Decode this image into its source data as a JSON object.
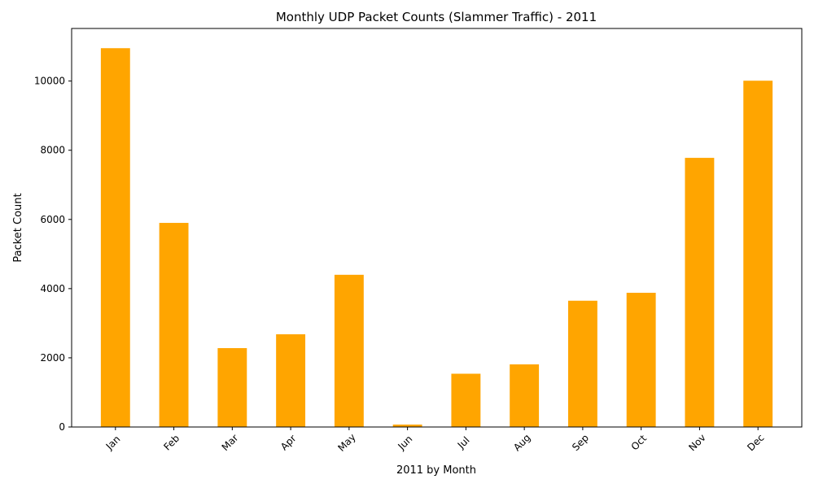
{
  "chart_data": {
    "type": "bar",
    "title": "Monthly UDP Packet Counts (Slammer Traffic) - 2011",
    "xlabel": "2011 by Month",
    "ylabel": "Packet Count",
    "categories": [
      "Jan",
      "Feb",
      "Mar",
      "Apr",
      "May",
      "Jun",
      "Jul",
      "Aug",
      "Sep",
      "Oct",
      "Nov",
      "Dec"
    ],
    "values": [
      10950,
      5900,
      2280,
      2680,
      4400,
      70,
      1540,
      1810,
      3650,
      3880,
      7780,
      10010
    ],
    "ylim": [
      0,
      11520
    ],
    "yticks": [
      0,
      2000,
      4000,
      6000,
      8000,
      10000
    ],
    "bar_color": "#FFA500",
    "grid": false,
    "legend": "none"
  }
}
